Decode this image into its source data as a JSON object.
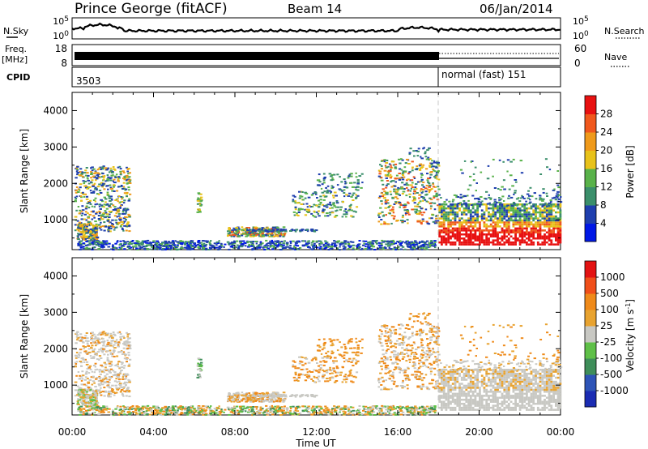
{
  "header": {
    "station": "Prince George (fitACF)",
    "beam": "Beam 14",
    "date": "06/Jan/2014"
  },
  "nsky": {
    "label": "N.Sky",
    "ticks": [
      "10^5",
      "10^0"
    ],
    "right_ticks": [
      "10^5",
      "10^0"
    ],
    "legend": "N.Search"
  },
  "freq": {
    "label_line1": "Freq.",
    "label_line2": "[MHz]",
    "ticks": [
      "18",
      "8"
    ],
    "right_ticks": [
      "60",
      "0"
    ],
    "legend": "Nave"
  },
  "cpid": {
    "label": "CPID",
    "segments": [
      "3503",
      "normal (fast) 151"
    ]
  },
  "x_ticks": [
    "00:00",
    "04:00",
    "08:00",
    "12:00",
    "16:00",
    "20:00",
    "00:00"
  ],
  "x_label": "Time UT",
  "colors": {
    "power": [
      "#0018e6",
      "#1f3fae",
      "#3b8f6b",
      "#59b24a",
      "#e8c21a",
      "#ef9a1b",
      "#f0581d",
      "#e81111"
    ],
    "velocity": [
      "#1b2cb3",
      "#2e54b7",
      "#3f8e5a",
      "#5fc048",
      "#c8c8c3",
      "#e8a330",
      "#ef8a1a",
      "#f04f1a",
      "#e31313"
    ]
  },
  "chart_data": [
    {
      "type": "heatmap",
      "title": "",
      "xlabel": "",
      "ylabel": "Slant Range [km]",
      "x": [
        "00:00",
        "04:00",
        "08:00",
        "12:00",
        "16:00",
        "20:00",
        "00:00"
      ],
      "y_ticks": [
        "4000",
        "3000",
        "2000",
        "1000"
      ],
      "ylim": [
        180,
        4500
      ],
      "colorbar_label": "Power [dB]",
      "colorbar_ticks": [
        "28",
        "24",
        "20",
        "16",
        "12",
        "8",
        "4"
      ]
    },
    {
      "type": "heatmap",
      "title": "",
      "xlabel": "Time UT",
      "ylabel": "Slant Range [km]",
      "x": [
        "00:00",
        "04:00",
        "08:00",
        "12:00",
        "16:00",
        "20:00",
        "00:00"
      ],
      "y_ticks": [
        "4000",
        "3000",
        "2000",
        "1000"
      ],
      "ylim": [
        180,
        4500
      ],
      "colorbar_label": "Velocity [m s^-1]",
      "colorbar_ticks": [
        "1000",
        "500",
        "100",
        "25",
        "-25",
        "-100",
        "-500",
        "-1000"
      ]
    }
  ]
}
